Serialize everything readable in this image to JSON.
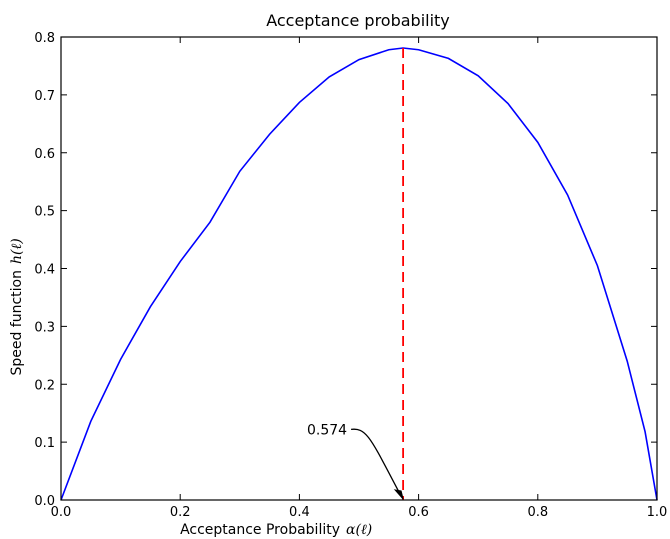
{
  "chart_data": {
    "type": "line",
    "title": "Acceptance probability",
    "xlabel": "Acceptance Probability",
    "xlabel_math": "α(ℓ)",
    "ylabel": "Speed function",
    "ylabel_math": "h(ℓ)",
    "xlim": [
      0.0,
      1.0
    ],
    "ylim": [
      0.0,
      0.8
    ],
    "xticks": [
      "0.0",
      "0.2",
      "0.4",
      "0.6",
      "0.8",
      "1.0"
    ],
    "yticks": [
      "0.0",
      "0.1",
      "0.2",
      "0.3",
      "0.4",
      "0.5",
      "0.6",
      "0.7",
      "0.8"
    ],
    "grid": false,
    "series": [
      {
        "color": "#0000ff",
        "x": [
          0.0,
          0.05,
          0.1,
          0.15,
          0.2,
          0.25,
          0.3,
          0.35,
          0.4,
          0.45,
          0.5,
          0.55,
          0.574,
          0.6,
          0.65,
          0.7,
          0.75,
          0.8,
          0.85,
          0.9,
          0.95,
          0.98,
          1.0
        ],
        "y": [
          0.0,
          0.136,
          0.243,
          0.334,
          0.412,
          0.48,
          0.568,
          0.632,
          0.687,
          0.731,
          0.761,
          0.778,
          0.781,
          0.778,
          0.763,
          0.733,
          0.685,
          0.618,
          0.527,
          0.405,
          0.24,
          0.118,
          0.0
        ]
      }
    ],
    "vline": {
      "x": 0.574,
      "y_top": 0.781,
      "color": "#ff0000",
      "style": "dashed"
    },
    "annotation": {
      "text": "0.574",
      "x": 0.574,
      "y": 0.0,
      "text_x": 0.48,
      "text_y": 0.122
    }
  }
}
